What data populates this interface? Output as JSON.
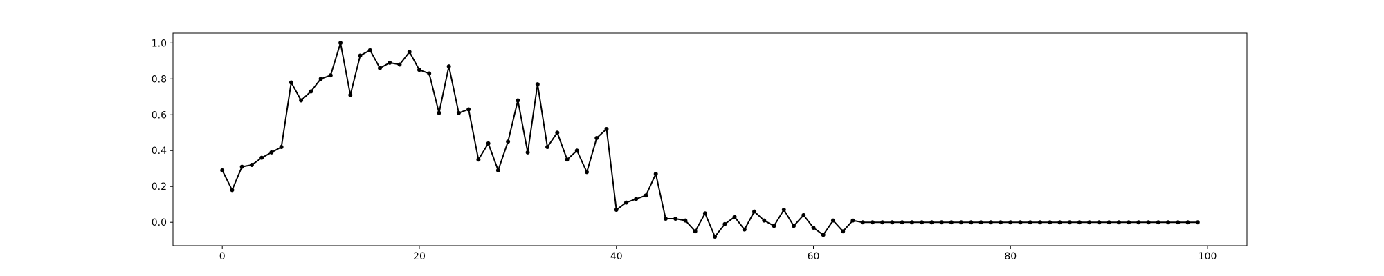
{
  "chart_data": {
    "type": "line",
    "title": "",
    "xlabel": "",
    "ylabel": "",
    "xlim": [
      -5,
      104
    ],
    "ylim": [
      -0.13,
      1.055
    ],
    "grid": false,
    "legend": "none",
    "x_ticks": [
      {
        "value": 0,
        "label": "0"
      },
      {
        "value": 20,
        "label": "20"
      },
      {
        "value": 40,
        "label": "40"
      },
      {
        "value": 60,
        "label": "60"
      },
      {
        "value": 80,
        "label": "80"
      },
      {
        "value": 100,
        "label": "100"
      }
    ],
    "y_ticks": [
      {
        "value": 0.0,
        "label": "0.0"
      },
      {
        "value": 0.2,
        "label": "0.2"
      },
      {
        "value": 0.4,
        "label": "0.4"
      },
      {
        "value": 0.6,
        "label": "0.6"
      },
      {
        "value": 0.8,
        "label": "0.8"
      },
      {
        "value": 1.0,
        "label": "1.0"
      }
    ],
    "series": [
      {
        "color": "#000000",
        "marker": "circle",
        "x": [
          0,
          1,
          2,
          3,
          4,
          5,
          6,
          7,
          8,
          9,
          10,
          11,
          12,
          13,
          14,
          15,
          16,
          17,
          18,
          19,
          20,
          21,
          22,
          23,
          24,
          25,
          26,
          27,
          28,
          29,
          30,
          31,
          32,
          33,
          34,
          35,
          36,
          37,
          38,
          39,
          40,
          41,
          42,
          43,
          44,
          45,
          46,
          47,
          48,
          49,
          50,
          51,
          52,
          53,
          54,
          55,
          56,
          57,
          58,
          59,
          60,
          61,
          62,
          63,
          64,
          65,
          66,
          67,
          68,
          69,
          70,
          71,
          72,
          73,
          74,
          75,
          76,
          77,
          78,
          79,
          80,
          81,
          82,
          83,
          84,
          85,
          86,
          87,
          88,
          89,
          90,
          91,
          92,
          93,
          94,
          95,
          96,
          97,
          98,
          99
        ],
        "y": [
          0.29,
          0.18,
          0.31,
          0.32,
          0.36,
          0.39,
          0.42,
          0.78,
          0.68,
          0.73,
          0.8,
          0.82,
          1.0,
          0.71,
          0.93,
          0.96,
          0.86,
          0.89,
          0.88,
          0.95,
          0.85,
          0.83,
          0.61,
          0.87,
          0.61,
          0.63,
          0.35,
          0.44,
          0.29,
          0.45,
          0.68,
          0.39,
          0.77,
          0.42,
          0.5,
          0.35,
          0.4,
          0.28,
          0.47,
          0.52,
          0.07,
          0.11,
          0.13,
          0.15,
          0.27,
          0.02,
          0.02,
          0.01,
          -0.05,
          0.05,
          -0.08,
          -0.01,
          0.03,
          -0.04,
          0.06,
          0.01,
          -0.02,
          0.07,
          -0.02,
          0.04,
          -0.03,
          -0.07,
          0.01,
          -0.05,
          0.01,
          0.0,
          0.0,
          0.0,
          0.0,
          0.0,
          0.0,
          0.0,
          0.0,
          0.0,
          0.0,
          0.0,
          0.0,
          0.0,
          0.0,
          0.0,
          0.0,
          0.0,
          0.0,
          0.0,
          0.0,
          0.0,
          0.0,
          0.0,
          0.0,
          0.0,
          0.0,
          0.0,
          0.0,
          0.0,
          0.0,
          0.0,
          0.0,
          0.0,
          0.0,
          0.0
        ]
      }
    ]
  }
}
